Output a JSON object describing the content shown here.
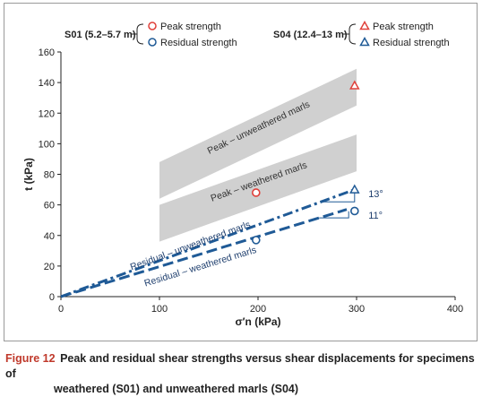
{
  "chart_data": {
    "type": "scatter",
    "xlabel": "σ′n (kPa)",
    "ylabel": "t (kPa)",
    "xlim": [
      0,
      400
    ],
    "ylim": [
      0,
      160
    ],
    "xticks": [
      0,
      100,
      200,
      300,
      400
    ],
    "yticks": [
      0,
      20,
      40,
      60,
      80,
      100,
      120,
      140,
      160
    ],
    "legend": {
      "groups": [
        {
          "label": "S01 (5.2–5.7 m)",
          "marker": "circle",
          "entries": [
            {
              "name": "Peak strength",
              "color": "#e0403a"
            },
            {
              "name": "Residual strength",
              "color": "#1f5a96"
            }
          ]
        },
        {
          "label": "S04 (12.4–13 m)",
          "marker": "triangle",
          "entries": [
            {
              "name": "Peak strength",
              "color": "#e0403a"
            },
            {
              "name": "Residual strength",
              "color": "#1f5a96"
            }
          ]
        }
      ]
    },
    "series": [
      {
        "name": "S01 Peak strength",
        "marker": "circle",
        "color": "#e0403a",
        "points": [
          {
            "x": 198,
            "y": 68
          }
        ]
      },
      {
        "name": "S01 Residual strength",
        "marker": "circle",
        "color": "#1f5a96",
        "points": [
          {
            "x": 198,
            "y": 37
          },
          {
            "x": 298,
            "y": 56
          }
        ]
      },
      {
        "name": "S04 Peak strength",
        "marker": "triangle",
        "color": "#e0403a",
        "points": [
          {
            "x": 298,
            "y": 138
          }
        ]
      },
      {
        "name": "S04 Residual strength",
        "marker": "triangle",
        "color": "#1f5a96",
        "points": [
          {
            "x": 298,
            "y": 70
          }
        ]
      }
    ],
    "lines": [
      {
        "label": "Residual – unweathered marls",
        "style": "dash-dot",
        "color": "#1f5a96",
        "from": [
          0,
          0
        ],
        "to": [
          298,
          70
        ]
      },
      {
        "label": "Residual – weathered marls",
        "style": "dashed",
        "color": "#1f5a96",
        "from": [
          0,
          0
        ],
        "to": [
          290,
          57
        ]
      }
    ],
    "bands": [
      {
        "label": "Peak – unweathered marls",
        "color": "#d0d0d0",
        "from": [
          100,
          76
        ],
        "to": [
          300,
          137
        ],
        "width_kpa": 12
      },
      {
        "label": "Peak – weathered marls",
        "color": "#d0d0d0",
        "from": [
          100,
          48
        ],
        "to": [
          300,
          94
        ],
        "width_kpa": 12
      }
    ],
    "angle_annotations": [
      {
        "text": "13°",
        "x": 312,
        "y": 65
      },
      {
        "text": "11°",
        "x": 312,
        "y": 51
      }
    ]
  },
  "caption": {
    "figure_label": "Figure 12",
    "line1": "Peak and residual shear strengths versus shear displacements for specimens of",
    "line2": "weathered (S01) and unweathered marls (S04)"
  }
}
